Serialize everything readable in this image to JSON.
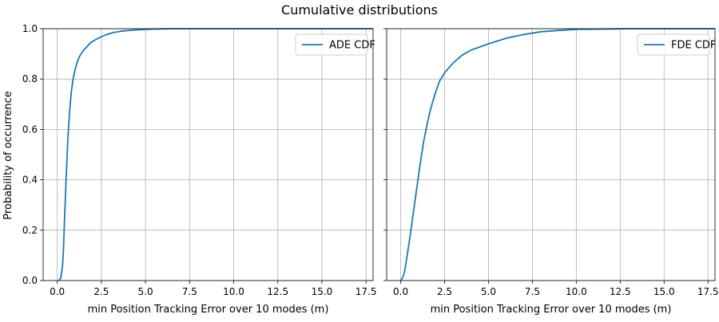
{
  "figure": {
    "suptitle": "Cumulative distributions",
    "ylabel": "Probability of occurrence"
  },
  "chart_data": [
    {
      "type": "line",
      "title": "",
      "xlabel": "min Position Tracking Error over 10 modes (m)",
      "ylabel": "Probability of occurrence",
      "xlim": [
        -0.8,
        17.9
      ],
      "ylim": [
        0,
        1
      ],
      "xticks": [
        0,
        2.5,
        5,
        7.5,
        10,
        12.5,
        15,
        17.5
      ],
      "xtick_labels": [
        "0.0",
        "2.5",
        "5.0",
        "7.5",
        "10.0",
        "12.5",
        "15.0",
        "17.5"
      ],
      "yticks": [
        0,
        0.2,
        0.4,
        0.6,
        0.8,
        1.0
      ],
      "ytick_labels": [
        "0.0",
        "0.2",
        "0.4",
        "0.6",
        "0.8",
        "1.0"
      ],
      "grid": true,
      "legend_position": "upper right",
      "series": [
        {
          "name": "ADE CDF",
          "color": "#1f77b4",
          "x": [
            0.1,
            0.2,
            0.3,
            0.35,
            0.4,
            0.5,
            0.6,
            0.7,
            0.8,
            0.9,
            1.0,
            1.1,
            1.2,
            1.3,
            1.4,
            1.5,
            1.7,
            1.9,
            2.2,
            2.5,
            2.8,
            3.2,
            3.6,
            4.2,
            5.0,
            5.8,
            6.5,
            7.5
          ],
          "y": [
            0.0,
            0.01,
            0.06,
            0.12,
            0.22,
            0.4,
            0.56,
            0.67,
            0.75,
            0.8,
            0.835,
            0.86,
            0.88,
            0.895,
            0.905,
            0.915,
            0.93,
            0.945,
            0.958,
            0.968,
            0.977,
            0.985,
            0.99,
            0.994,
            0.997,
            0.999,
            1.0,
            1.0
          ]
        }
      ]
    },
    {
      "type": "line",
      "title": "",
      "xlabel": "min Position Tracking Error over 10 modes (m)",
      "xlim": [
        -0.8,
        17.9
      ],
      "ylim": [
        0,
        1
      ],
      "xticks": [
        0,
        2.5,
        5,
        7.5,
        10,
        12.5,
        15,
        17.5
      ],
      "xtick_labels": [
        "0.0",
        "2.5",
        "5.0",
        "7.5",
        "10.0",
        "12.5",
        "15.0",
        "17.5"
      ],
      "yticks": [
        0,
        0.2,
        0.4,
        0.6,
        0.8,
        1.0
      ],
      "grid": true,
      "legend_position": "upper right",
      "series": [
        {
          "name": "FDE CDF",
          "color": "#1f77b4",
          "x": [
            0.0,
            0.1,
            0.2,
            0.3,
            0.5,
            0.7,
            0.9,
            1.1,
            1.3,
            1.5,
            1.7,
            2.0,
            2.2,
            2.5,
            3.0,
            3.5,
            4.0,
            5.0,
            6.0,
            7.0,
            8.0,
            9.0,
            10.0,
            11.0,
            12.0,
            13.0
          ],
          "y": [
            0.0,
            0.01,
            0.03,
            0.07,
            0.16,
            0.26,
            0.36,
            0.46,
            0.55,
            0.62,
            0.68,
            0.75,
            0.79,
            0.825,
            0.865,
            0.895,
            0.915,
            0.94,
            0.962,
            0.977,
            0.988,
            0.993,
            0.997,
            0.998,
            0.999,
            1.0
          ]
        }
      ]
    }
  ]
}
